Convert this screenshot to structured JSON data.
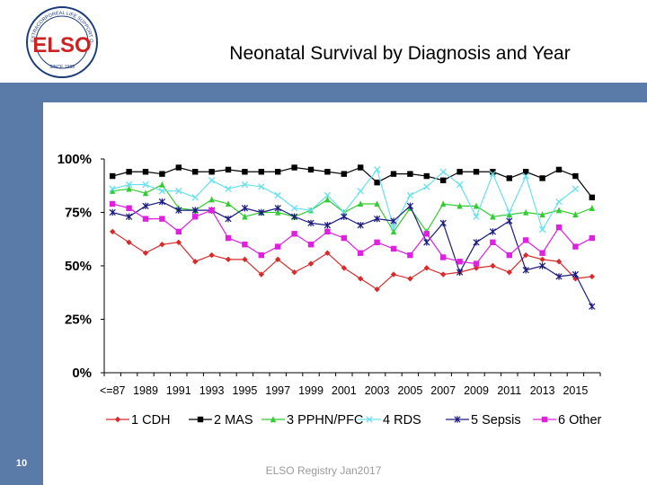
{
  "header": {
    "title": "Neonatal Survival by Diagnosis and Year",
    "logo_text": "ELSO",
    "logo_ring_text": "EXTRACORPOREAL LIFE SUPPORT ORGANIZATION",
    "logo_year": "SINCE 1989"
  },
  "footer": {
    "page_number": "10",
    "source": "ELSO Registry Jan2017"
  },
  "colors": {
    "band": "#5a7aa8"
  },
  "chart_data": {
    "type": "line",
    "title": "Neonatal Survival by Diagnosis and Year",
    "xlabel": "",
    "ylabel": "",
    "ylim": [
      0,
      100
    ],
    "yticks": [
      "0%",
      "25%",
      "50%",
      "75%",
      "100%"
    ],
    "x": [
      "<=87",
      "1988",
      "1989",
      "1990",
      "1991",
      "1992",
      "1993",
      "1994",
      "1995",
      "1996",
      "1997",
      "1998",
      "1999",
      "2000",
      "2001",
      "2002",
      "2003",
      "2004",
      "2005",
      "2006",
      "2007",
      "2008",
      "2009",
      "2010",
      "2011",
      "2012",
      "2013",
      "2014",
      "2015",
      "2016"
    ],
    "x_tick_labels": [
      "<=87",
      "1989",
      "1991",
      "1993",
      "1995",
      "1997",
      "1999",
      "2001",
      "2003",
      "2005",
      "2007",
      "2009",
      "2011",
      "2013",
      "2015"
    ],
    "legend_position": "bottom",
    "series": [
      {
        "name": "1 CDH",
        "color": "#d92b2b",
        "marker": "diamond",
        "values": [
          66,
          61,
          56,
          60,
          61,
          52,
          55,
          53,
          53,
          46,
          53,
          47,
          51,
          56,
          49,
          44,
          39,
          46,
          44,
          49,
          46,
          47,
          49,
          50,
          47,
          55,
          53,
          52,
          44,
          45
        ]
      },
      {
        "name": "2 MAS",
        "color": "#000000",
        "marker": "square",
        "values": [
          92,
          94,
          94,
          93,
          96,
          94,
          94,
          95,
          94,
          94,
          94,
          96,
          95,
          94,
          93,
          96,
          89,
          93,
          93,
          92,
          90,
          94,
          94,
          94,
          91,
          94,
          91,
          95,
          92,
          82
        ]
      },
      {
        "name": "3 PPHN/PFC",
        "color": "#33cc33",
        "marker": "triangle",
        "values": [
          85,
          86,
          84,
          88,
          77,
          76,
          81,
          79,
          73,
          75,
          75,
          73,
          76,
          81,
          75,
          79,
          79,
          66,
          77,
          66,
          79,
          78,
          78,
          73,
          74,
          75,
          74,
          76,
          74,
          77
        ]
      },
      {
        "name": "4 RDS",
        "color": "#66e0f0",
        "marker": "x",
        "values": [
          86,
          88,
          88,
          85,
          85,
          82,
          90,
          86,
          88,
          87,
          83,
          77,
          76,
          83,
          75,
          85,
          95,
          68,
          83,
          87,
          94,
          88,
          73,
          93,
          75,
          92,
          67,
          80,
          86,
          null
        ]
      },
      {
        "name": "5 Sepsis",
        "color": "#1a1a80",
        "marker": "star",
        "values": [
          75,
          73,
          78,
          80,
          76,
          76,
          76,
          72,
          77,
          75,
          77,
          73,
          70,
          69,
          73,
          69,
          72,
          71,
          78,
          61,
          70,
          47,
          61,
          66,
          71,
          48,
          50,
          45,
          46,
          31
        ]
      },
      {
        "name": "6 Other",
        "color": "#e020e0",
        "marker": "square",
        "values": [
          79,
          77,
          72,
          72,
          66,
          73,
          76,
          63,
          60,
          55,
          59,
          65,
          60,
          66,
          63,
          56,
          61,
          58,
          55,
          65,
          54,
          52,
          51,
          61,
          55,
          62,
          56,
          68,
          59,
          63
        ]
      }
    ]
  }
}
